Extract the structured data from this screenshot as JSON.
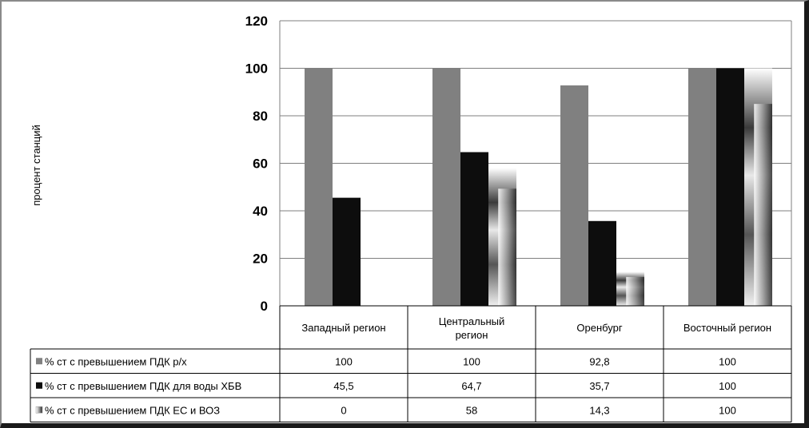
{
  "chart_data": {
    "type": "bar",
    "title": "",
    "ylabel": "процент станций",
    "xlabel": "",
    "ylim": [
      0,
      120
    ],
    "yticks": [
      0,
      20,
      40,
      60,
      80,
      100,
      120
    ],
    "grid": true,
    "legend": "data-table-left",
    "categories": [
      "Западный регион",
      "Центральный регион",
      "Оренбург",
      "Восточный регион"
    ],
    "series": [
      {
        "name": "% ст с превышением ПДК р/х",
        "values": [
          100,
          100,
          92.8,
          100
        ],
        "labels": [
          "100",
          "100",
          "92,8",
          "100"
        ],
        "color": "#808080",
        "fill": "solid"
      },
      {
        "name": "% ст с превышением ПДК для воды ХБВ",
        "values": [
          45.5,
          64.7,
          35.7,
          100
        ],
        "labels": [
          "45,5",
          "64,7",
          "35,7",
          "100"
        ],
        "color": "#0d0d0d",
        "fill": "solid"
      },
      {
        "name": "% ст с превышением ПДК ЕС и ВОЗ",
        "values": [
          0,
          58,
          14.3,
          100
        ],
        "labels": [
          "0",
          "58",
          "14,3",
          "100"
        ],
        "color": "#bdbdbd",
        "fill": "gradient"
      }
    ]
  }
}
